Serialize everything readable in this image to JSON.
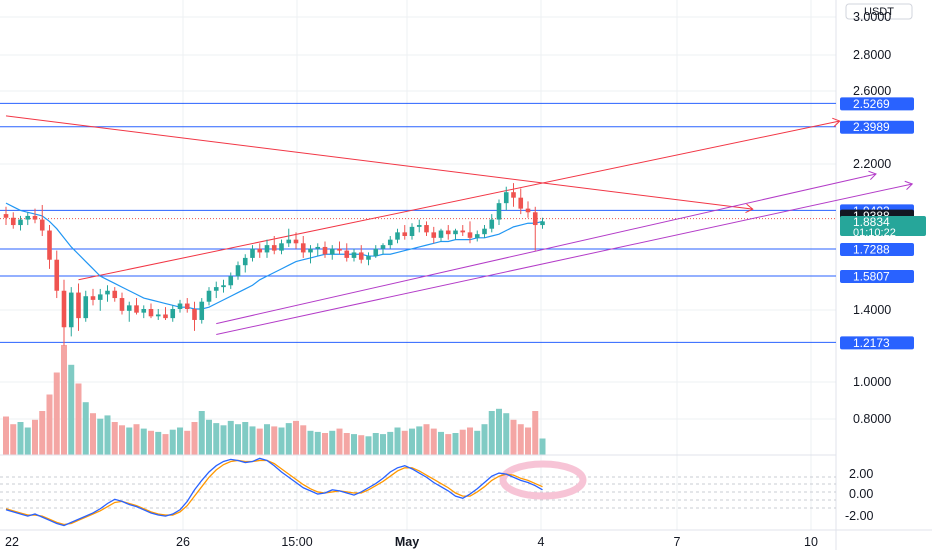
{
  "colors": {
    "up": "#26a69a",
    "down": "#ef5350",
    "vol_up": "#80cbc4",
    "vol_down": "#f4a6a4",
    "level": "#2962ff",
    "ma": "#2196f3",
    "red_line": "#f23645",
    "purple_line": "#b33cc8",
    "osc_k": "#2962ff",
    "osc_d": "#ff9800",
    "grid": "#eef0f3",
    "marker": "#f7c4d6",
    "current_bg": "#26a69a",
    "dark_label_bg": "#131722"
  },
  "price_axis": {
    "currency": "USDT",
    "ticks": [
      "3.0000",
      "2.8000",
      "2.6000",
      "2.2000",
      "1.4000",
      "1.0000",
      "0.8000"
    ]
  },
  "time_axis": {
    "labels": [
      "22",
      "26",
      "15:00",
      "May",
      "4",
      "7",
      "10"
    ]
  },
  "osc_axis": {
    "ticks": [
      "2.00",
      "0.00",
      "-2.00"
    ]
  },
  "current_price": {
    "value": "1.8834",
    "countdown": "01:10:22"
  },
  "chart_data": [
    {
      "type": "candlestick",
      "title": "",
      "ylim": [
        0.58,
        3.06
      ],
      "horizontal_levels": [
        {
          "value": 2.5269,
          "label": "2.5269"
        },
        {
          "value": 2.3989,
          "label": "2.3989"
        },
        {
          "value": 1.9402,
          "label": "1.9402"
        },
        {
          "value": 1.9388,
          "label": "1.9388"
        },
        {
          "value": 1.7288,
          "label": "1.7288"
        },
        {
          "value": 1.5807,
          "label": "1.5807"
        },
        {
          "value": 1.2173,
          "label": "1.2173"
        }
      ],
      "trendlines": [
        {
          "color": "red",
          "from": [
            0,
            2.458
          ],
          "to": [
            103,
            1.947
          ]
        },
        {
          "color": "red",
          "from": [
            10,
            1.56
          ],
          "to": [
            115,
            2.43
          ],
          "arrow": true
        },
        {
          "color": "purple",
          "from": [
            29,
            1.26
          ],
          "to": [
            125,
            2.085
          ],
          "arrow": true
        },
        {
          "color": "purple",
          "from": [
            29,
            1.32
          ],
          "to": [
            120,
            2.14
          ],
          "arrow": true
        }
      ],
      "candles_ohlc": [
        [
          1.92,
          1.96,
          1.86,
          1.9
        ],
        [
          1.9,
          1.93,
          1.84,
          1.86
        ],
        [
          1.86,
          1.91,
          1.83,
          1.89
        ],
        [
          1.89,
          1.93,
          1.86,
          1.91
        ],
        [
          1.91,
          1.95,
          1.87,
          1.89
        ],
        [
          1.89,
          1.97,
          1.8,
          1.83
        ],
        [
          1.83,
          1.86,
          1.62,
          1.67
        ],
        [
          1.67,
          1.72,
          1.46,
          1.5
        ],
        [
          1.5,
          1.56,
          1.2,
          1.3
        ],
        [
          1.3,
          1.52,
          1.25,
          1.49
        ],
        [
          1.49,
          1.54,
          1.28,
          1.35
        ],
        [
          1.35,
          1.5,
          1.33,
          1.47
        ],
        [
          1.47,
          1.51,
          1.42,
          1.45
        ],
        [
          1.45,
          1.51,
          1.39,
          1.48
        ],
        [
          1.48,
          1.53,
          1.44,
          1.5
        ],
        [
          1.5,
          1.52,
          1.44,
          1.46
        ],
        [
          1.46,
          1.49,
          1.37,
          1.39
        ],
        [
          1.39,
          1.44,
          1.33,
          1.42
        ],
        [
          1.42,
          1.46,
          1.37,
          1.38
        ],
        [
          1.38,
          1.42,
          1.35,
          1.4
        ],
        [
          1.4,
          1.43,
          1.35,
          1.36
        ],
        [
          1.36,
          1.4,
          1.34,
          1.37
        ],
        [
          1.37,
          1.41,
          1.34,
          1.35
        ],
        [
          1.35,
          1.42,
          1.33,
          1.4
        ],
        [
          1.4,
          1.45,
          1.38,
          1.43
        ],
        [
          1.43,
          1.46,
          1.38,
          1.4
        ],
        [
          1.4,
          1.44,
          1.28,
          1.34
        ],
        [
          1.34,
          1.46,
          1.32,
          1.44
        ],
        [
          1.44,
          1.52,
          1.42,
          1.5
        ],
        [
          1.5,
          1.55,
          1.46,
          1.52
        ],
        [
          1.52,
          1.56,
          1.49,
          1.53
        ],
        [
          1.53,
          1.6,
          1.51,
          1.58
        ],
        [
          1.58,
          1.66,
          1.56,
          1.64
        ],
        [
          1.64,
          1.7,
          1.6,
          1.68
        ],
        [
          1.68,
          1.75,
          1.66,
          1.73
        ],
        [
          1.73,
          1.76,
          1.68,
          1.71
        ],
        [
          1.71,
          1.78,
          1.68,
          1.75
        ],
        [
          1.75,
          1.8,
          1.7,
          1.72
        ],
        [
          1.72,
          1.78,
          1.7,
          1.76
        ],
        [
          1.76,
          1.84,
          1.74,
          1.78
        ],
        [
          1.78,
          1.82,
          1.73,
          1.76
        ],
        [
          1.76,
          1.8,
          1.68,
          1.71
        ],
        [
          1.71,
          1.75,
          1.65,
          1.73
        ],
        [
          1.73,
          1.76,
          1.69,
          1.74
        ],
        [
          1.74,
          1.77,
          1.68,
          1.7
        ],
        [
          1.7,
          1.75,
          1.67,
          1.73
        ],
        [
          1.73,
          1.77,
          1.7,
          1.72
        ],
        [
          1.72,
          1.76,
          1.66,
          1.68
        ],
        [
          1.68,
          1.73,
          1.66,
          1.71
        ],
        [
          1.71,
          1.75,
          1.65,
          1.67
        ],
        [
          1.67,
          1.71,
          1.64,
          1.69
        ],
        [
          1.69,
          1.75,
          1.68,
          1.73
        ],
        [
          1.73,
          1.76,
          1.7,
          1.75
        ],
        [
          1.75,
          1.8,
          1.73,
          1.78
        ],
        [
          1.78,
          1.84,
          1.76,
          1.82
        ],
        [
          1.82,
          1.86,
          1.78,
          1.8
        ],
        [
          1.8,
          1.87,
          1.78,
          1.85
        ],
        [
          1.85,
          1.89,
          1.82,
          1.86
        ],
        [
          1.86,
          1.88,
          1.8,
          1.82
        ],
        [
          1.82,
          1.85,
          1.76,
          1.79
        ],
        [
          1.79,
          1.84,
          1.77,
          1.83
        ],
        [
          1.83,
          1.86,
          1.78,
          1.81
        ],
        [
          1.81,
          1.84,
          1.78,
          1.83
        ],
        [
          1.83,
          1.86,
          1.8,
          1.82
        ],
        [
          1.82,
          1.88,
          1.76,
          1.79
        ],
        [
          1.79,
          1.83,
          1.77,
          1.81
        ],
        [
          1.81,
          1.86,
          1.79,
          1.84
        ],
        [
          1.84,
          1.92,
          1.82,
          1.89
        ],
        [
          1.89,
          2.0,
          1.86,
          1.98
        ],
        [
          1.98,
          2.07,
          1.94,
          2.04
        ],
        [
          2.04,
          2.09,
          1.96,
          2.01
        ],
        [
          2.01,
          2.06,
          1.92,
          1.95
        ],
        [
          1.95,
          1.99,
          1.9,
          1.93
        ],
        [
          1.93,
          1.96,
          1.72,
          1.86
        ],
        [
          1.86,
          1.9,
          1.84,
          1.88
        ]
      ],
      "ma_line": [
        1.98,
        1.96,
        1.94,
        1.93,
        1.92,
        1.91,
        1.88,
        1.84,
        1.79,
        1.74,
        1.7,
        1.66,
        1.62,
        1.58,
        1.56,
        1.54,
        1.52,
        1.5,
        1.48,
        1.46,
        1.45,
        1.44,
        1.43,
        1.42,
        1.41,
        1.41,
        1.4,
        1.4,
        1.41,
        1.43,
        1.45,
        1.47,
        1.49,
        1.51,
        1.53,
        1.56,
        1.58,
        1.6,
        1.62,
        1.64,
        1.66,
        1.67,
        1.68,
        1.69,
        1.7,
        1.7,
        1.7,
        1.7,
        1.7,
        1.7,
        1.69,
        1.69,
        1.7,
        1.7,
        1.71,
        1.72,
        1.73,
        1.74,
        1.75,
        1.76,
        1.77,
        1.77,
        1.78,
        1.78,
        1.78,
        1.79,
        1.79,
        1.8,
        1.81,
        1.83,
        1.85,
        1.86,
        1.87,
        1.87,
        1.88
      ],
      "volume": [
        35,
        28,
        30,
        25,
        32,
        40,
        55,
        75,
        100,
        82,
        65,
        48,
        38,
        33,
        36,
        30,
        27,
        25,
        28,
        24,
        22,
        21,
        19,
        23,
        25,
        22,
        30,
        40,
        32,
        29,
        27,
        31,
        28,
        30,
        26,
        24,
        28,
        26,
        25,
        29,
        31,
        27,
        22,
        21,
        20,
        22,
        24,
        20,
        19,
        18,
        17,
        20,
        19,
        21,
        25,
        22,
        24,
        26,
        28,
        24,
        21,
        19,
        20,
        23,
        25,
        22,
        28,
        40,
        42,
        38,
        32,
        28,
        25,
        40,
        15
      ],
      "oscillator": {
        "ticks": [
          2,
          0,
          -2
        ],
        "k": [
          -1.6,
          -1.8,
          -2.0,
          -2.2,
          -2.0,
          -2.3,
          -2.6,
          -2.9,
          -3.1,
          -2.8,
          -2.5,
          -2.2,
          -1.9,
          -1.5,
          -1.0,
          -0.6,
          -0.8,
          -1.1,
          -1.3,
          -1.6,
          -1.9,
          -2.1,
          -2.2,
          -2.0,
          -1.6,
          -0.8,
          0.3,
          1.2,
          2.0,
          2.6,
          3.0,
          3.2,
          3.1,
          2.9,
          3.0,
          3.3,
          3.1,
          2.6,
          2.0,
          1.5,
          1.0,
          0.5,
          0.2,
          -0.1,
          0.0,
          0.3,
          0.2,
          0.0,
          -0.2,
          0.1,
          0.5,
          0.9,
          1.4,
          2.0,
          2.4,
          2.6,
          2.3,
          1.9,
          1.5,
          1.0,
          0.6,
          0.2,
          -0.3,
          -0.5,
          -0.1,
          0.4,
          1.0,
          1.6,
          1.9,
          1.8,
          1.5,
          1.2,
          1.0,
          0.7,
          0.3
        ],
        "d": [
          -1.5,
          -1.7,
          -1.9,
          -2.1,
          -2.1,
          -2.2,
          -2.5,
          -2.8,
          -3.0,
          -2.9,
          -2.6,
          -2.3,
          -2.0,
          -1.7,
          -1.3,
          -0.9,
          -0.8,
          -1.0,
          -1.2,
          -1.5,
          -1.8,
          -2.0,
          -2.1,
          -2.1,
          -1.8,
          -1.2,
          -0.3,
          0.6,
          1.5,
          2.2,
          2.7,
          3.0,
          3.1,
          3.0,
          3.0,
          3.1,
          3.1,
          2.8,
          2.3,
          1.8,
          1.3,
          0.8,
          0.4,
          0.1,
          0.0,
          0.1,
          0.2,
          0.1,
          0.0,
          0.0,
          0.3,
          0.7,
          1.1,
          1.6,
          2.1,
          2.4,
          2.4,
          2.1,
          1.7,
          1.3,
          0.9,
          0.5,
          0.0,
          -0.3,
          -0.3,
          0.1,
          0.6,
          1.2,
          1.6,
          1.8,
          1.7,
          1.4,
          1.2,
          0.9,
          0.6
        ]
      }
    }
  ]
}
